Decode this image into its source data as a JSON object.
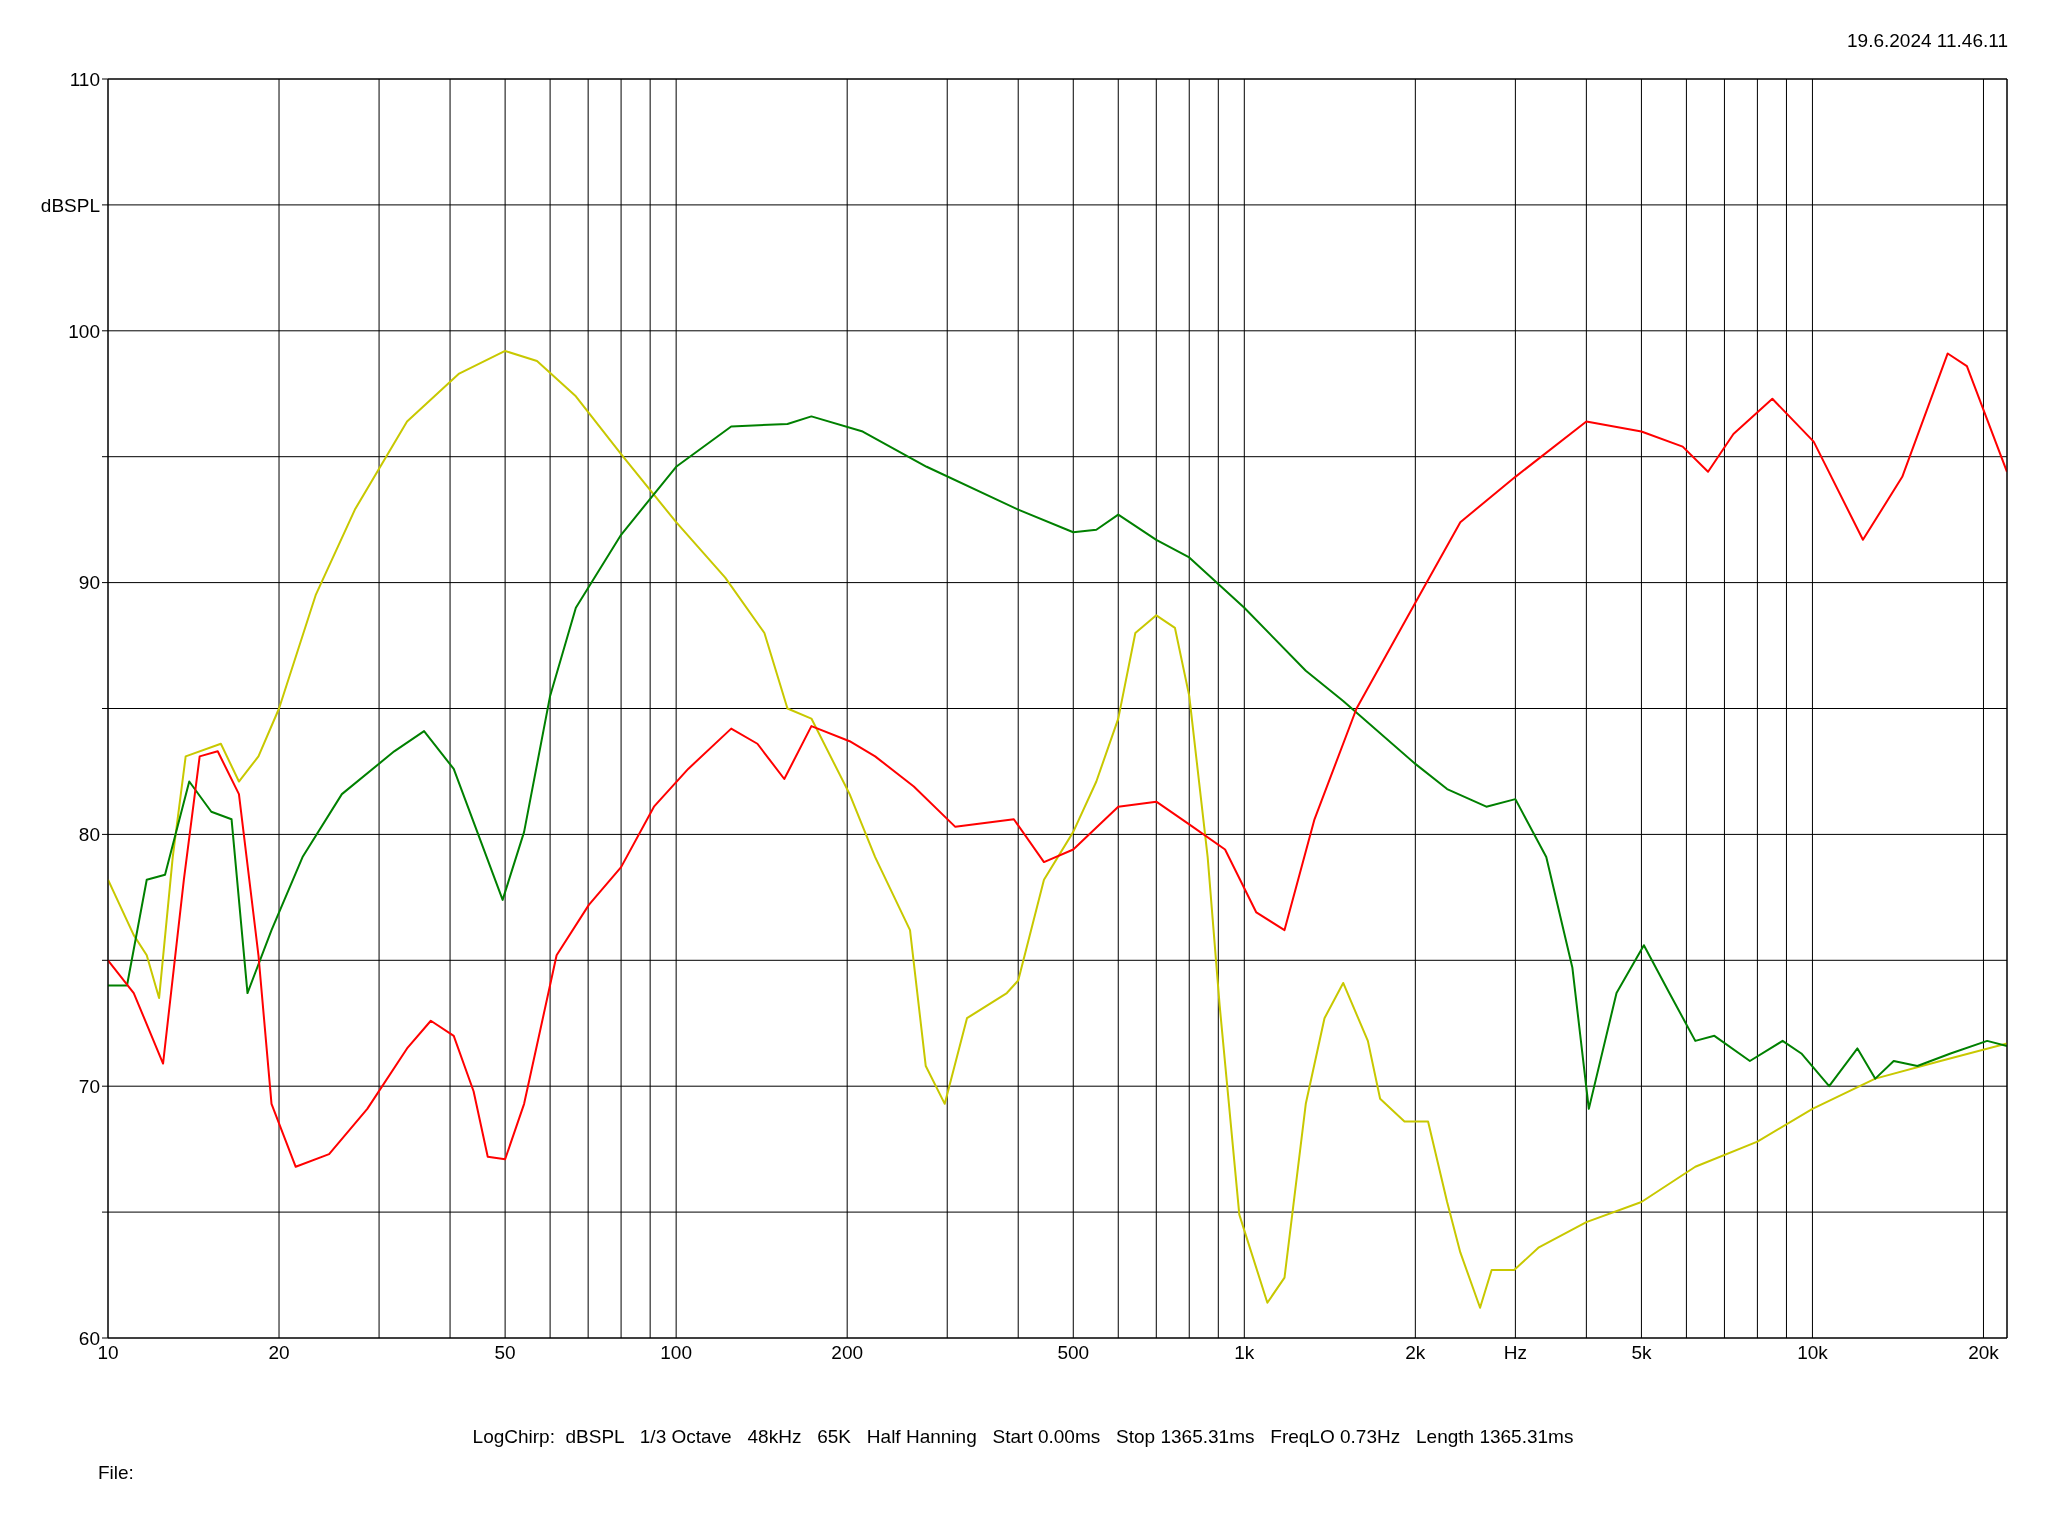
{
  "chart_data": {
    "type": "line",
    "log": "x",
    "grid": true,
    "xlim": [
      10,
      22000
    ],
    "ylim": [
      60,
      110
    ],
    "xticks": [
      10,
      20,
      {
        "value": 30,
        "label": null
      },
      {
        "value": 40,
        "label": null
      },
      50,
      {
        "value": 60,
        "label": null
      },
      {
        "value": 70,
        "label": null
      },
      {
        "value": 80,
        "label": null
      },
      {
        "value": 90,
        "label": null
      },
      100,
      200,
      {
        "value": 300,
        "label": null
      },
      {
        "value": 400,
        "label": null
      },
      500,
      {
        "value": 600,
        "label": null
      },
      {
        "value": 700,
        "label": null
      },
      {
        "value": 800,
        "label": null
      },
      {
        "value": 900,
        "label": null
      },
      {
        "value": 1000,
        "label": "1k"
      },
      {
        "value": 2000,
        "label": "2k"
      },
      {
        "value": 3000,
        "label": "Hz"
      },
      {
        "value": 4000,
        "label": null
      },
      {
        "value": 5000,
        "label": "5k"
      },
      {
        "value": 6000,
        "label": null
      },
      {
        "value": 7000,
        "label": null
      },
      {
        "value": 8000,
        "label": null
      },
      {
        "value": 9000,
        "label": null
      },
      {
        "value": 10000,
        "label": "10k"
      },
      {
        "value": 20000,
        "label": "20k"
      }
    ],
    "yticks": [
      60,
      {
        "value": 65,
        "label": null
      },
      70,
      {
        "value": 75,
        "label": null
      },
      80,
      {
        "value": 85,
        "label": null
      },
      90,
      {
        "value": 95,
        "label": null
      },
      100,
      {
        "value": 105,
        "label": "dBSPL"
      },
      110
    ],
    "annotations": [
      "19.6.2024 11.46.11",
      "LogChirp:  dBSPL   1/3 Octave   48kHz   65K   Half Hanning   Start 0.00ms   Stop 1365.31ms   FreqLO 0.73Hz   Length 1365.31ms",
      "File:"
    ],
    "series": [
      {
        "color": "#c8c800",
        "x": [
          10,
          11.1,
          11.7,
          12.3,
          13,
          13.7,
          15.8,
          17,
          18.4,
          20,
          23.2,
          27.2,
          33.6,
          41.5,
          50,
          56.9,
          66.6,
          80,
          100,
          122,
          143,
          157,
          173,
          202,
          224,
          258,
          275,
          297,
          325,
          382,
          400,
          444,
          500,
          549,
          600,
          643,
          700,
          755,
          800,
          862,
          905,
          980,
          1098,
          1177,
          1283,
          1384,
          1493,
          1650,
          1734,
          1914,
          2106,
          2275,
          2400,
          2600,
          2725,
          2985,
          3300,
          4000,
          5000,
          6220,
          8000,
          10000,
          12900,
          16800,
          22000
        ],
        "values": [
          78.2,
          76.0,
          75.2,
          73.5,
          79.1,
          83.1,
          83.6,
          82.1,
          83.1,
          85.0,
          89.5,
          92.9,
          96.4,
          98.3,
          99.2,
          98.8,
          97.4,
          95.1,
          92.4,
          90.2,
          88.0,
          85.0,
          84.6,
          81.6,
          79.1,
          76.2,
          70.8,
          69.3,
          72.7,
          73.7,
          74.2,
          78.2,
          80.1,
          82.1,
          84.6,
          88.0,
          88.7,
          88.2,
          85.5,
          79.1,
          73.2,
          64.9,
          61.4,
          62.4,
          69.3,
          72.7,
          74.1,
          71.8,
          69.5,
          68.6,
          68.6,
          65.4,
          63.4,
          61.2,
          62.7,
          62.7,
          63.6,
          64.6,
          65.4,
          66.8,
          67.8,
          69.1,
          70.3,
          71.0,
          71.7
        ]
      },
      {
        "color": "#008000",
        "x": [
          10,
          10.8,
          11.7,
          12.6,
          13.9,
          15.2,
          16.5,
          17.6,
          19.4,
          22,
          25.8,
          31.9,
          36,
          40.6,
          45,
          49.5,
          54,
          60,
          66.6,
          80,
          100,
          125,
          157,
          173,
          213,
          276,
          400,
          500,
          549,
          600,
          700,
          800,
          1000,
          1283,
          1493,
          2000,
          2275,
          2667,
          3000,
          3400,
          3780,
          4040,
          4520,
          5050,
          5600,
          6220,
          6720,
          7760,
          8860,
          9560,
          10700,
          12000,
          12900,
          13900,
          15300,
          17500,
          20300,
          22000
        ],
        "values": [
          74.0,
          74.0,
          78.2,
          78.4,
          82.1,
          80.9,
          80.6,
          73.7,
          76.2,
          79.1,
          81.6,
          83.3,
          84.1,
          82.6,
          79.9,
          77.4,
          80.1,
          85.5,
          89.0,
          91.9,
          94.6,
          96.2,
          96.3,
          96.6,
          96.0,
          94.6,
          92.9,
          92.0,
          92.1,
          92.7,
          91.7,
          91.0,
          89.0,
          86.5,
          85.3,
          82.8,
          81.8,
          81.1,
          81.4,
          79.1,
          74.7,
          69.1,
          73.7,
          75.6,
          73.7,
          71.8,
          72.0,
          71.0,
          71.8,
          71.3,
          70.0,
          71.5,
          70.3,
          71.0,
          70.8,
          71.3,
          71.8,
          71.6
        ]
      },
      {
        "color": "#ff0000",
        "x": [
          10,
          11.1,
          12.5,
          13.6,
          14.5,
          15.6,
          17,
          18.4,
          19.4,
          21.4,
          24.5,
          28.6,
          33.6,
          37,
          40.6,
          44,
          46.6,
          50,
          54,
          61.6,
          70.2,
          80,
          91.4,
          105,
          125,
          139,
          155,
          173,
          202,
          224,
          262,
          310,
          393,
          444,
          500,
          600,
          700,
          800,
          925,
          1050,
          1177,
          1329,
          1576,
          2000,
          2400,
          3000,
          4000,
          5000,
          5910,
          6550,
          7260,
          8500,
          10050,
          12270,
          14390,
          17300,
          18700,
          22000
        ],
        "values": [
          75.0,
          73.7,
          70.9,
          78.2,
          83.1,
          83.3,
          81.6,
          75.2,
          69.3,
          66.8,
          67.3,
          69.1,
          71.5,
          72.6,
          72.0,
          69.8,
          67.2,
          67.1,
          69.3,
          75.2,
          77.2,
          78.7,
          81.1,
          82.6,
          84.2,
          83.6,
          82.2,
          84.3,
          83.7,
          83.1,
          81.9,
          80.3,
          80.6,
          78.9,
          79.4,
          81.1,
          81.3,
          80.4,
          79.4,
          76.9,
          76.2,
          80.6,
          85.0,
          89.2,
          92.4,
          94.2,
          96.4,
          96.0,
          95.4,
          94.4,
          95.9,
          97.3,
          95.6,
          91.7,
          94.2,
          99.1,
          98.6,
          94.4
        ]
      }
    ]
  }
}
